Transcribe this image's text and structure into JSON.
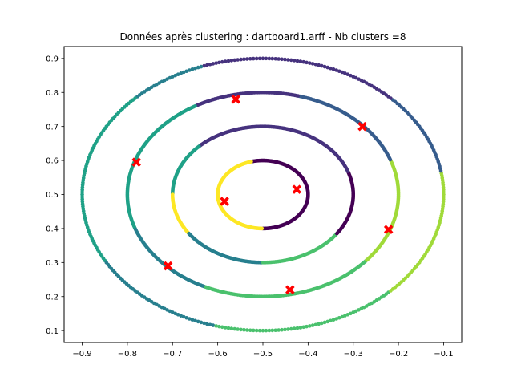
{
  "chart_data": {
    "type": "scatter",
    "title": "Données après clustering : dartboard1.arff - Nb clusters =8",
    "xlabel": "",
    "ylabel": "",
    "xlim": [
      -0.94,
      -0.06
    ],
    "ylim": [
      0.065,
      0.935
    ],
    "xticks": [
      -0.9,
      -0.8,
      -0.7,
      -0.6,
      -0.5,
      -0.4,
      -0.3,
      -0.2,
      -0.1
    ],
    "xtick_labels": [
      "−0.9",
      "−0.8",
      "−0.7",
      "−0.6",
      "−0.5",
      "−0.4",
      "−0.3",
      "−0.2",
      "−0.1"
    ],
    "yticks": [
      0.1,
      0.2,
      0.3,
      0.4,
      0.5,
      0.6,
      0.7,
      0.8,
      0.9
    ],
    "ytick_labels": [
      "0.1",
      "0.2",
      "0.3",
      "0.4",
      "0.5",
      "0.6",
      "0.7",
      "0.8",
      "0.9"
    ],
    "grid": false,
    "legend": "none",
    "colors": {
      "c0": "#440154",
      "c1": "#46327e",
      "c2": "#365c8d",
      "c3": "#277f8e",
      "c4": "#1fa187",
      "c5": "#4ac16d",
      "c6": "#a0da39",
      "c7": "#fde725",
      "centroid": "#ff0000"
    },
    "rings": [
      {
        "center": [
          -0.5,
          0.5
        ],
        "radius": 0.1,
        "points": 300,
        "segments": [
          {
            "from": -90,
            "to": 5,
            "cluster": "c0"
          },
          {
            "from": 5,
            "to": 105,
            "cluster": "c0"
          },
          {
            "from": 105,
            "to": 270,
            "cluster": "c7"
          }
        ]
      },
      {
        "center": [
          -0.5,
          0.5
        ],
        "radius": 0.2,
        "points": 400,
        "segments": [
          {
            "from": 0,
            "to": 20,
            "cluster": "c0"
          },
          {
            "from": 20,
            "to": 135,
            "cluster": "c1"
          },
          {
            "from": 135,
            "to": 180,
            "cluster": "c4"
          },
          {
            "from": 180,
            "to": 215,
            "cluster": "c7"
          },
          {
            "from": 215,
            "to": 270,
            "cluster": "c3"
          },
          {
            "from": 270,
            "to": 325,
            "cluster": "c5"
          },
          {
            "from": 325,
            "to": 360,
            "cluster": "c0"
          }
        ]
      },
      {
        "center": [
          -0.5,
          0.5
        ],
        "radius": 0.3,
        "points": 500,
        "segments": [
          {
            "from": 0,
            "to": 20,
            "cluster": "c6"
          },
          {
            "from": 20,
            "to": 50,
            "cluster": "c2"
          },
          {
            "from": 50,
            "to": 75,
            "cluster": "c2"
          },
          {
            "from": 75,
            "to": 120,
            "cluster": "c1"
          },
          {
            "from": 120,
            "to": 200,
            "cluster": "c4"
          },
          {
            "from": 200,
            "to": 245,
            "cluster": "c3"
          },
          {
            "from": 245,
            "to": 285,
            "cluster": "c5"
          },
          {
            "from": 285,
            "to": 320,
            "cluster": "c5"
          },
          {
            "from": 320,
            "to": 360,
            "cluster": "c6"
          }
        ]
      },
      {
        "center": [
          -0.5,
          0.5
        ],
        "radius": 0.4,
        "points": 360,
        "segments": [
          {
            "from": 0,
            "to": 10,
            "cluster": "c6"
          },
          {
            "from": 10,
            "to": 45,
            "cluster": "c2"
          },
          {
            "from": 45,
            "to": 110,
            "cluster": "c1"
          },
          {
            "from": 110,
            "to": 135,
            "cluster": "c3"
          },
          {
            "from": 135,
            "to": 210,
            "cluster": "c4"
          },
          {
            "from": 210,
            "to": 255,
            "cluster": "c3"
          },
          {
            "from": 255,
            "to": 315,
            "cluster": "c5"
          },
          {
            "from": 315,
            "to": 360,
            "cluster": "c6"
          }
        ]
      }
    ],
    "centroids": [
      {
        "x": -0.56,
        "y": 0.78
      },
      {
        "x": -0.28,
        "y": 0.7
      },
      {
        "x": -0.78,
        "y": 0.595
      },
      {
        "x": -0.585,
        "y": 0.48
      },
      {
        "x": -0.425,
        "y": 0.515
      },
      {
        "x": -0.222,
        "y": 0.397
      },
      {
        "x": -0.71,
        "y": 0.29
      },
      {
        "x": -0.44,
        "y": 0.22
      }
    ]
  }
}
